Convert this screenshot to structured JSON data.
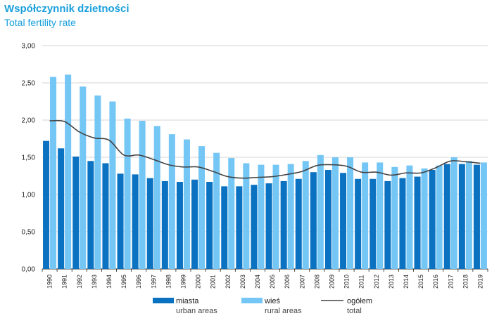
{
  "chart_data": {
    "type": "bar",
    "title": "Współczynnik dzietności",
    "subtitle": "Total fertility rate",
    "categories": [
      "1990",
      "1991",
      "1992",
      "1993",
      "1994",
      "1995",
      "1996",
      "1997",
      "1998",
      "1999",
      "2000",
      "2001",
      "2002",
      "2003",
      "2004",
      "2005",
      "2006",
      "2007",
      "2008",
      "2009",
      "2010",
      "2011",
      "2012",
      "2013",
      "2014",
      "2015",
      "2016",
      "2017",
      "2018",
      "2019"
    ],
    "y_ticks": [
      "0,00",
      "0,50",
      "1,00",
      "1,50",
      "2,00",
      "2,50",
      "3,00"
    ],
    "ylim": [
      0,
      3
    ],
    "grid": true,
    "legend_position": "bottom",
    "series": [
      {
        "name": "miasta",
        "name_en": "urban areas",
        "type": "bar",
        "color": "#0a72c1",
        "values": [
          1.72,
          1.62,
          1.51,
          1.45,
          1.42,
          1.28,
          1.27,
          1.22,
          1.18,
          1.17,
          1.2,
          1.17,
          1.11,
          1.11,
          1.13,
          1.15,
          1.18,
          1.21,
          1.3,
          1.33,
          1.29,
          1.21,
          1.21,
          1.18,
          1.22,
          1.24,
          1.33,
          1.41,
          1.41,
          1.4
        ]
      },
      {
        "name": "wieś",
        "name_en": "rural areas",
        "type": "bar",
        "color": "#74c6f5",
        "values": [
          2.58,
          2.61,
          2.45,
          2.33,
          2.25,
          2.02,
          1.99,
          1.92,
          1.81,
          1.74,
          1.65,
          1.56,
          1.49,
          1.42,
          1.4,
          1.4,
          1.41,
          1.45,
          1.53,
          1.5,
          1.5,
          1.43,
          1.43,
          1.37,
          1.39,
          1.35,
          1.39,
          1.5,
          1.45,
          1.43
        ]
      },
      {
        "name": "ogółem",
        "name_en": "total",
        "type": "line",
        "color": "#444444",
        "values": [
          1.99,
          1.98,
          1.84,
          1.76,
          1.73,
          1.53,
          1.53,
          1.47,
          1.4,
          1.37,
          1.37,
          1.31,
          1.24,
          1.22,
          1.23,
          1.24,
          1.27,
          1.31,
          1.39,
          1.4,
          1.38,
          1.3,
          1.3,
          1.26,
          1.29,
          1.29,
          1.36,
          1.45,
          1.44,
          1.42
        ]
      }
    ]
  }
}
